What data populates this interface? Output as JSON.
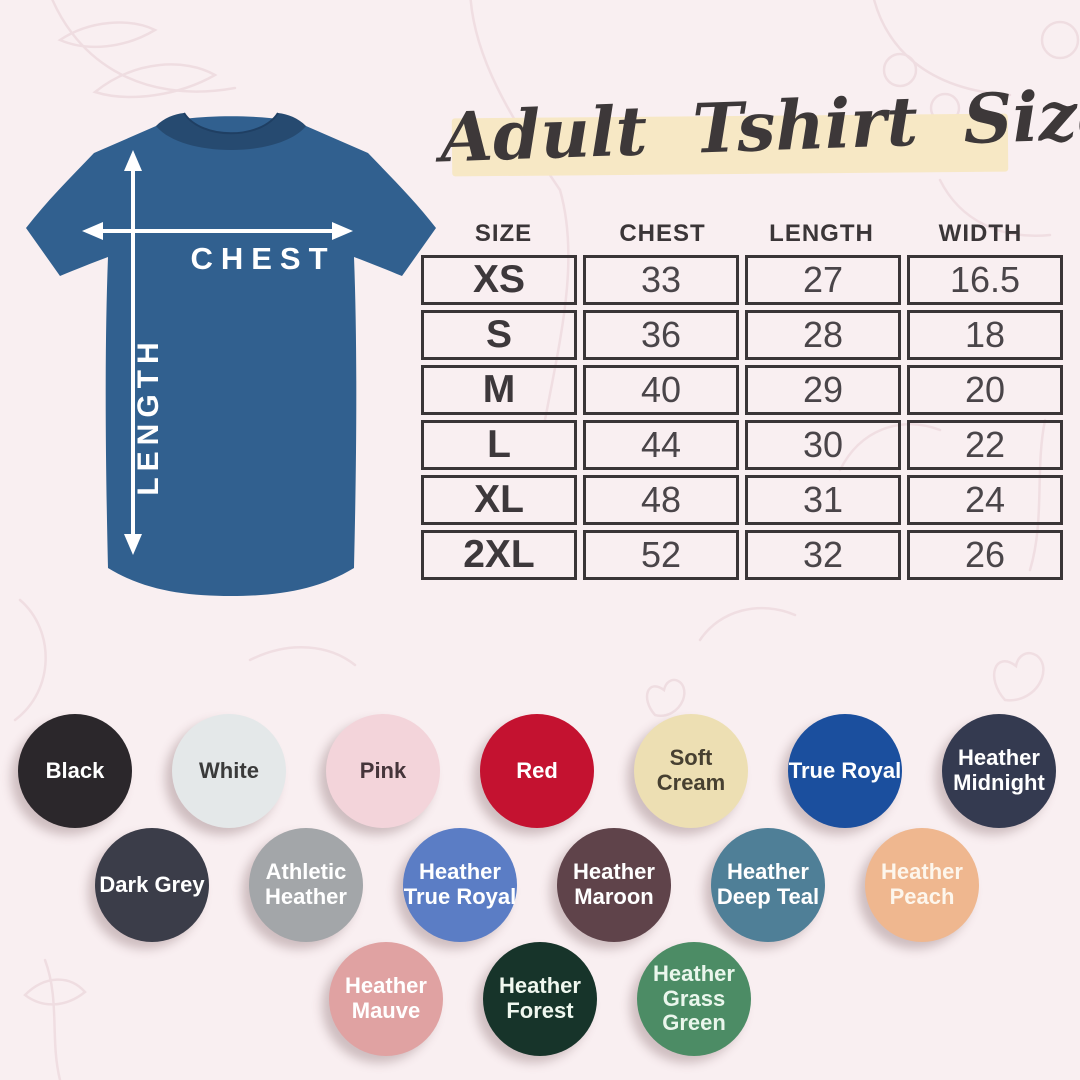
{
  "title": {
    "text": "Adult Tshirt Size"
  },
  "shirt_diagram": {
    "chest_label": "CHEST",
    "length_label": "LENGTH",
    "shirt_color": "#31608f",
    "collar_color": "#264a70",
    "arrow_color": "#ffffff"
  },
  "chart_data": {
    "type": "table",
    "title": "Adult Tshirt Size",
    "columns": [
      "SIZE",
      "CHEST",
      "LENGTH",
      "WIDTH"
    ],
    "rows": [
      [
        "XS",
        "33",
        "27",
        "16.5"
      ],
      [
        "S",
        "36",
        "28",
        "18"
      ],
      [
        "M",
        "40",
        "29",
        "20"
      ],
      [
        "L",
        "44",
        "30",
        "22"
      ],
      [
        "XL",
        "48",
        "31",
        "24"
      ],
      [
        "2XL",
        "52",
        "32",
        "26"
      ]
    ]
  },
  "color_swatches": {
    "rows": [
      [
        {
          "name": "Black",
          "label": "Black",
          "bg": "#2b272b",
          "fg": "#ffffff"
        },
        {
          "name": "White",
          "label": "White",
          "bg": "#e4e8e9",
          "fg": "#3a3a3a"
        },
        {
          "name": "Pink",
          "label": "Pink",
          "bg": "#f3d4da",
          "fg": "#45353a"
        },
        {
          "name": "Red",
          "label": "Red",
          "bg": "#c41230",
          "fg": "#ffffff"
        },
        {
          "name": "Soft Cream",
          "label": "Soft Cream",
          "bg": "#eddfb3",
          "fg": "#474031"
        },
        {
          "name": "True Royal",
          "label": "True Royal",
          "bg": "#1b4f9e",
          "fg": "#ffffff"
        },
        {
          "name": "Heather Midnight",
          "label": "Heather\nMidnight",
          "bg": "#343a50",
          "fg": "#ffffff"
        }
      ],
      [
        {
          "name": "Dark Grey",
          "label": "Dark Grey",
          "bg": "#3b3d49",
          "fg": "#ffffff"
        },
        {
          "name": "Athletic Heather",
          "label": "Athletic\nHeather",
          "bg": "#a3a6a9",
          "fg": "#ffffff"
        },
        {
          "name": "Heather True Royal",
          "label": "Heather\nTrue Royal",
          "bg": "#5b7dc5",
          "fg": "#ffffff"
        },
        {
          "name": "Heather Maroon",
          "label": "Heather\nMaroon",
          "bg": "#5f434a",
          "fg": "#ffffff"
        },
        {
          "name": "Heather Deep Teal",
          "label": "Heather\nDeep Teal",
          "bg": "#4f7f97",
          "fg": "#ffffff"
        },
        {
          "name": "Heather Peach",
          "label": "Heather\nPeach",
          "bg": "#efb78f",
          "fg": "#fdf6ec"
        }
      ],
      [
        {
          "name": "Heather Mauve",
          "label": "Heather\nMauve",
          "bg": "#e0a2a2",
          "fg": "#ffffff"
        },
        {
          "name": "Heather Forest",
          "label": "Heather\nForest",
          "bg": "#17342a",
          "fg": "#f0f7ef"
        },
        {
          "name": "Heather Grass Green",
          "label": "Heather\nGrass Green",
          "bg": "#4c8c65",
          "fg": "#eaf6ec"
        }
      ]
    ]
  },
  "theme": {
    "background": "#f9eff1",
    "highlight_band": "#f7e8c5",
    "table_border": "#3a3537",
    "pattern_line": "#eedbdf"
  }
}
